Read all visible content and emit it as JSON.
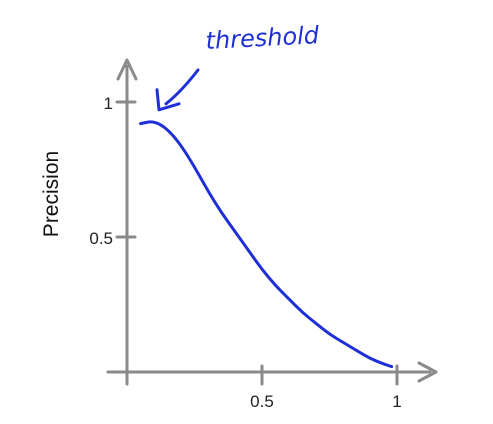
{
  "chart_data": {
    "type": "line",
    "title": "",
    "xlabel": "",
    "ylabel": "Precision",
    "xlim": [
      0,
      1.1
    ],
    "ylim": [
      0,
      1.1
    ],
    "grid": false,
    "x_ticks": [
      {
        "value": 0.5,
        "label": "0.5"
      },
      {
        "value": 1,
        "label": "1"
      }
    ],
    "y_ticks": [
      {
        "value": 0.5,
        "label": "0.5"
      },
      {
        "value": 1,
        "label": "1"
      }
    ],
    "series": [
      {
        "color": "#1f2fd8",
        "x": [
          0.05,
          0.1,
          0.15,
          0.2,
          0.25,
          0.3,
          0.35,
          0.4,
          0.45,
          0.5,
          0.55,
          0.6,
          0.65,
          0.7,
          0.75,
          0.8,
          0.85,
          0.9,
          0.95,
          0.98
        ],
        "y": [
          0.92,
          0.93,
          0.9,
          0.84,
          0.76,
          0.67,
          0.59,
          0.52,
          0.45,
          0.38,
          0.32,
          0.27,
          0.22,
          0.18,
          0.14,
          0.11,
          0.08,
          0.05,
          0.03,
          0.02
        ]
      }
    ],
    "annotation": {
      "text": "threshold",
      "color": "#1f2fd8",
      "point_to": {
        "x": 0.1,
        "y": 0.96
      }
    }
  }
}
